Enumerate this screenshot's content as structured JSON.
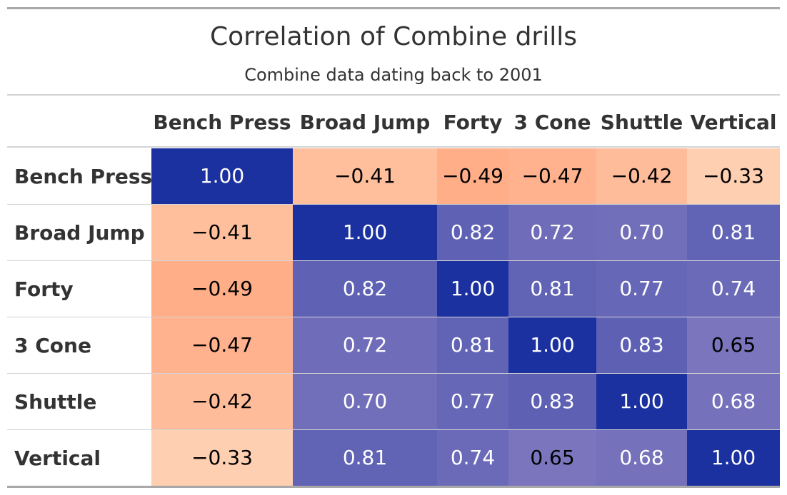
{
  "chart_data": {
    "type": "table",
    "title": "Correlation of Combine drills",
    "subtitle": "Combine data dating back to 2001",
    "columns": [
      "Bench Press",
      "Broad Jump",
      "Forty",
      "3 Cone",
      "Shuttle",
      "Vertical"
    ],
    "rows": [
      {
        "label": "Bench Press",
        "values": [
          "1.00",
          "−0.41",
          "−0.49",
          "−0.47",
          "−0.42",
          "−0.33"
        ]
      },
      {
        "label": "Broad Jump",
        "values": [
          "−0.41",
          "1.00",
          "0.82",
          "0.72",
          "0.70",
          "0.81"
        ]
      },
      {
        "label": "Forty",
        "values": [
          "−0.49",
          "0.82",
          "1.00",
          "0.81",
          "0.77",
          "0.74"
        ]
      },
      {
        "label": "3 Cone",
        "values": [
          "−0.47",
          "0.72",
          "0.81",
          "1.00",
          "0.83",
          "0.65"
        ]
      },
      {
        "label": "Shuttle",
        "values": [
          "−0.42",
          "0.70",
          "0.77",
          "0.83",
          "1.00",
          "0.68"
        ]
      },
      {
        "label": "Vertical",
        "values": [
          "−0.33",
          "0.81",
          "0.74",
          "0.65",
          "0.68",
          "1.00"
        ]
      }
    ],
    "color_scale": {
      "positive_high": "#1b31a0",
      "positive_low": "#7b75bd",
      "negative_high": "#ffae88",
      "negative_low": "#ffcfb1"
    }
  }
}
